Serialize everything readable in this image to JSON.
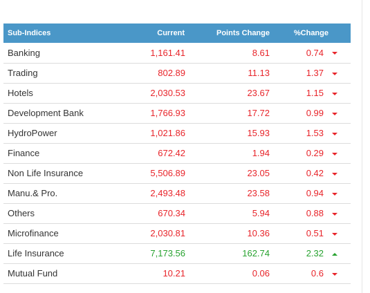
{
  "colors": {
    "header_bg": "#4a97c8",
    "down": "#e8242a",
    "up": "#27a22f"
  },
  "table": {
    "headers": [
      "Sub-Indices",
      "Current",
      "Points Change",
      "%Change"
    ],
    "rows": [
      {
        "name": "Banking",
        "current": "1,161.41",
        "points": "8.61",
        "pct": "0.74",
        "dir": "down"
      },
      {
        "name": "Trading",
        "current": "802.89",
        "points": "11.13",
        "pct": "1.37",
        "dir": "down"
      },
      {
        "name": "Hotels",
        "current": "2,030.53",
        "points": "23.67",
        "pct": "1.15",
        "dir": "down"
      },
      {
        "name": "Development Bank",
        "current": "1,766.93",
        "points": "17.72",
        "pct": "0.99",
        "dir": "down"
      },
      {
        "name": "HydroPower",
        "current": "1,021.86",
        "points": "15.93",
        "pct": "1.53",
        "dir": "down"
      },
      {
        "name": "Finance",
        "current": "672.42",
        "points": "1.94",
        "pct": "0.29",
        "dir": "down"
      },
      {
        "name": "Non Life Insurance",
        "current": "5,506.89",
        "points": "23.05",
        "pct": "0.42",
        "dir": "down"
      },
      {
        "name": "Manu.& Pro.",
        "current": "2,493.48",
        "points": "23.58",
        "pct": "0.94",
        "dir": "down"
      },
      {
        "name": "Others",
        "current": "670.34",
        "points": "5.94",
        "pct": "0.88",
        "dir": "down"
      },
      {
        "name": "Microfinance",
        "current": "2,030.81",
        "points": "10.36",
        "pct": "0.51",
        "dir": "down"
      },
      {
        "name": "Life Insurance",
        "current": "7,173.56",
        "points": "162.74",
        "pct": "2.32",
        "dir": "up"
      },
      {
        "name": "Mutual Fund",
        "current": "10.21",
        "points": "0.06",
        "pct": "0.6",
        "dir": "down"
      }
    ]
  }
}
